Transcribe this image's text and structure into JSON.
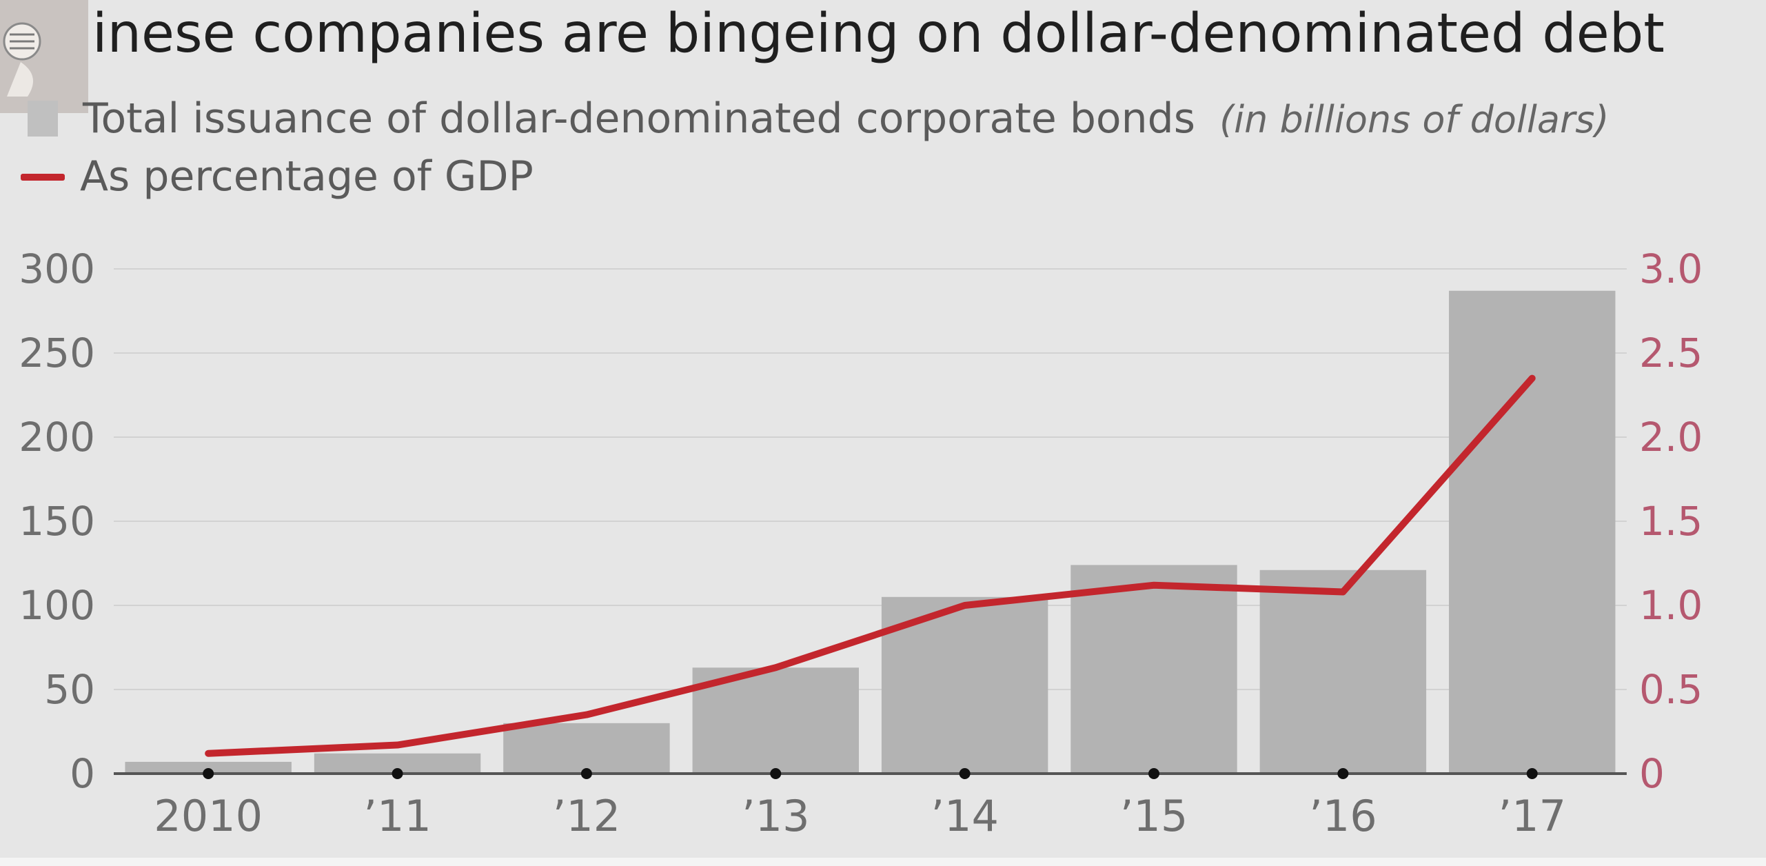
{
  "chart_data": {
    "type": "bar",
    "title": "Chinese companies are bingeing on dollar-denominated debt",
    "categories": [
      "2010",
      "’11",
      "’12",
      "’13",
      "’14",
      "’15",
      "’16",
      "’17"
    ],
    "series": [
      {
        "name": "Total issuance of dollar-denominated corporate bonds",
        "name_suffix": "(in billions of dollars)",
        "kind": "bar",
        "axis": "left",
        "color": "#b3b3b3",
        "values": [
          7,
          12,
          30,
          63,
          105,
          124,
          121,
          287
        ]
      },
      {
        "name": "As percentage of GDP",
        "kind": "line",
        "axis": "right",
        "color": "#c3262d",
        "values": [
          0.12,
          0.17,
          0.35,
          0.63,
          1.0,
          1.12,
          1.08,
          2.35
        ]
      }
    ],
    "y_left": {
      "lim": [
        0,
        300
      ],
      "ticks": [
        "0",
        "50",
        "100",
        "150",
        "200",
        "250",
        "300"
      ],
      "tick_values": [
        0,
        50,
        100,
        150,
        200,
        250,
        300
      ]
    },
    "y_right": {
      "lim": [
        0,
        3.0
      ],
      "ticks": [
        "0",
        "0.5",
        "1.0",
        "1.5",
        "2.0",
        "2.5",
        "3.0"
      ],
      "tick_values": [
        0,
        0.5,
        1.0,
        1.5,
        2.0,
        2.5,
        3.0
      ]
    },
    "grid": true,
    "legend_position": "top-left",
    "axis_color": "#555555",
    "grid_color": "#d2d2d2",
    "right_axis_color": "#b5586f"
  }
}
